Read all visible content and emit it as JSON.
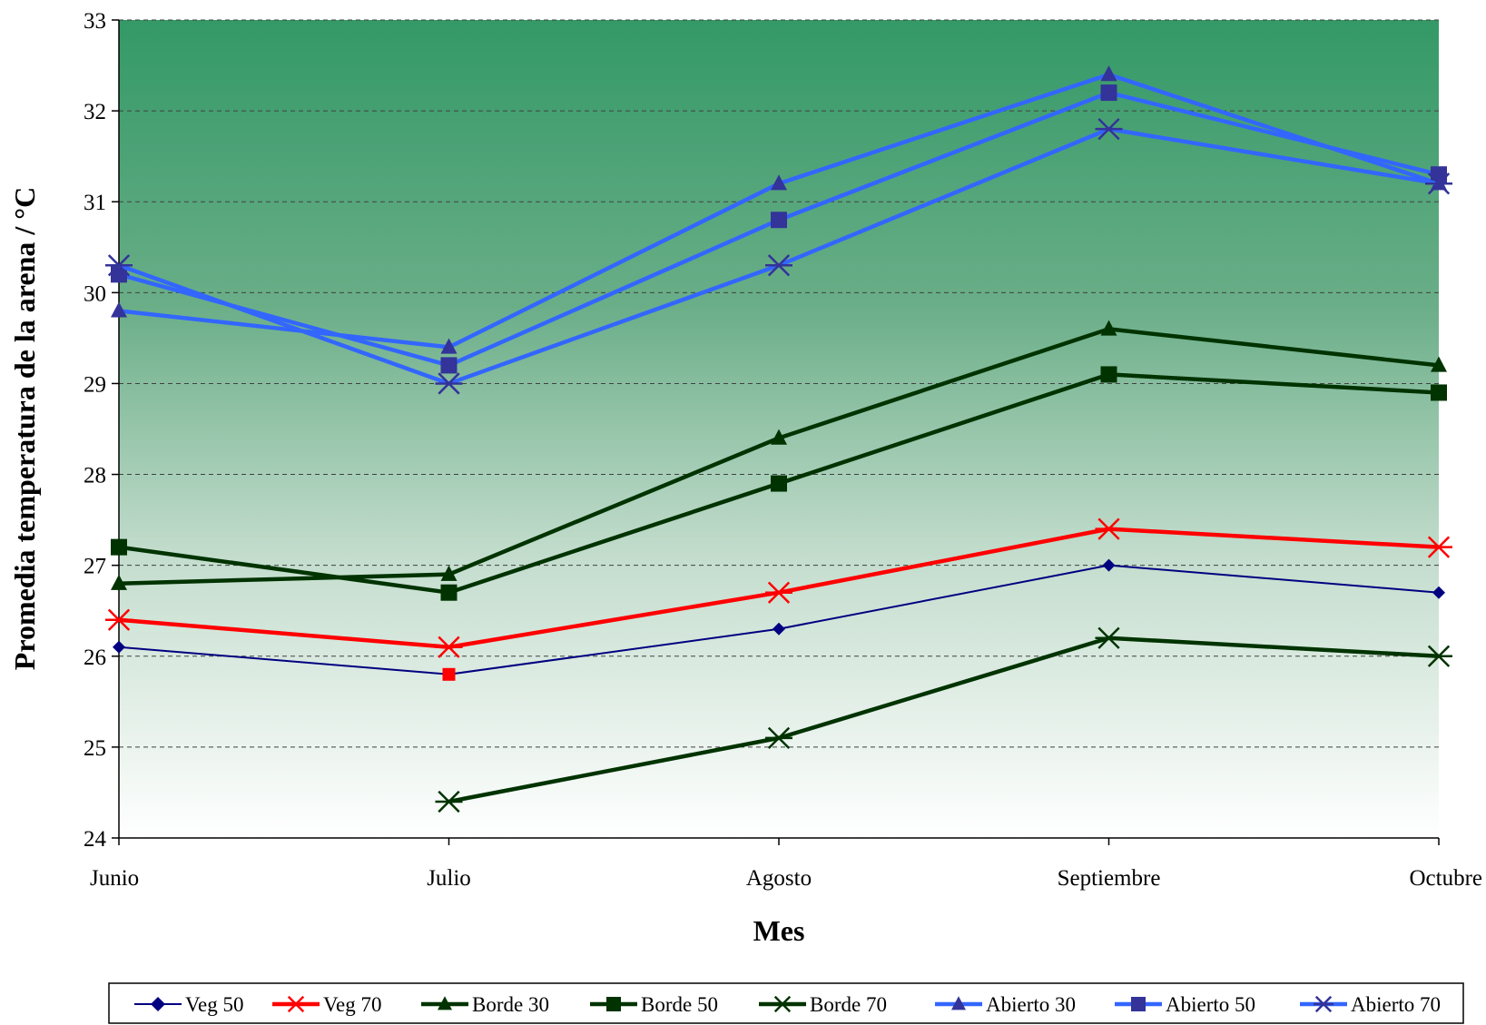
{
  "chart_data": {
    "type": "line",
    "title": "",
    "xlabel": "Mes",
    "ylabel": "Promedia temperatura de la arena / °C",
    "categories": [
      "Junio",
      "Julio",
      "Agosto",
      "Septiembre",
      "Octubre"
    ],
    "ylim": [
      24,
      33
    ],
    "yticks": [
      24,
      25,
      26,
      27,
      28,
      29,
      30,
      31,
      32,
      33
    ],
    "grid": "horizontal dashed",
    "background": "vertical gradient, dark green at top to white at bottom",
    "legend_position": "bottom",
    "series": [
      {
        "name": "Veg 50",
        "color": "#000080",
        "marker": "diamond",
        "line_width": "thin",
        "values": [
          26.1,
          25.8,
          26.3,
          27.0,
          26.7
        ],
        "marker_colors": [
          "#000080",
          "#ff0000",
          "#000080",
          "#000080",
          "#000080"
        ]
      },
      {
        "name": "Veg 70",
        "color": "#ff0000",
        "marker": "asterisk",
        "line_width": "thick",
        "values": [
          26.4,
          26.1,
          26.7,
          27.4,
          27.2
        ]
      },
      {
        "name": "Borde 30",
        "color": "#003300",
        "marker": "triangle",
        "line_width": "thick",
        "values": [
          26.8,
          26.9,
          28.4,
          29.6,
          29.2
        ]
      },
      {
        "name": "Borde 50",
        "color": "#003300",
        "marker": "square",
        "line_width": "thick",
        "values": [
          27.2,
          26.7,
          27.9,
          29.1,
          28.9
        ]
      },
      {
        "name": "Borde 70",
        "color": "#003300",
        "marker": "asterisk",
        "line_width": "thick",
        "values": [
          null,
          24.4,
          25.1,
          26.2,
          26.0
        ]
      },
      {
        "name": "Abierto 30",
        "color": "#3366ff",
        "marker_color": "#333399",
        "marker": "triangle",
        "line_width": "thick",
        "values": [
          29.8,
          29.4,
          31.2,
          32.4,
          31.2
        ]
      },
      {
        "name": "Abierto 50",
        "color": "#3366ff",
        "marker_color": "#333399",
        "marker": "square",
        "line_width": "thick",
        "values": [
          30.2,
          29.2,
          30.8,
          32.2,
          31.3
        ]
      },
      {
        "name": "Abierto 70",
        "color": "#3366ff",
        "marker_color": "#333399",
        "marker": "asterisk",
        "line_width": "thick",
        "values": [
          30.3,
          29.0,
          30.3,
          31.8,
          31.2
        ]
      }
    ]
  }
}
